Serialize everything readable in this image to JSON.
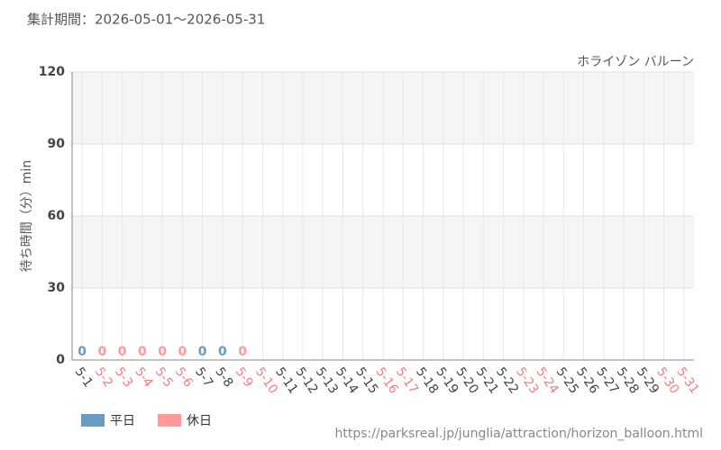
{
  "chart_data": {
    "type": "bar",
    "subtitle": "集計期間：2026-05-01～2026-05-31",
    "title": "ホライゾン バルーン",
    "y_label": "待ち時間（分）min",
    "source": "https://parksreal.jp/junglia/attraction/horizon_balloon.html",
    "categories": [
      "5-1",
      "5-2",
      "5-3",
      "5-4",
      "5-5",
      "5-6",
      "5-7",
      "5-8",
      "5-9",
      "5-10",
      "5-11",
      "5-12",
      "5-13",
      "5-14",
      "5-15",
      "5-16",
      "5-17",
      "5-18",
      "5-19",
      "5-20",
      "5-21",
      "5-22",
      "5-23",
      "5-24",
      "5-25",
      "5-26",
      "5-27",
      "5-28",
      "5-29",
      "5-30",
      "5-31"
    ],
    "category_colors": [
      "#444",
      "#f08080",
      "#f08080",
      "#f08080",
      "#f08080",
      "#f08080",
      "#444",
      "#444",
      "#f08080",
      "#f08080",
      "#444",
      "#444",
      "#444",
      "#444",
      "#444",
      "#f08080",
      "#f08080",
      "#444",
      "#444",
      "#444",
      "#444",
      "#444",
      "#f08080",
      "#f08080",
      "#444",
      "#444",
      "#444",
      "#444",
      "#444",
      "#f08080",
      "#f08080"
    ],
    "series": [
      {
        "name": "平日",
        "color": "#6a9bc3",
        "values": [
          0,
          null,
          null,
          null,
          null,
          null,
          0,
          0,
          null,
          null,
          null,
          null,
          null,
          null,
          null,
          null,
          null,
          null,
          null,
          null,
          null,
          null,
          null,
          null,
          null,
          null,
          null,
          null,
          null,
          null,
          null
        ]
      },
      {
        "name": "休日",
        "color": "#ff9999",
        "values": [
          null,
          0,
          0,
          0,
          0,
          0,
          null,
          null,
          0,
          null,
          null,
          null,
          null,
          null,
          null,
          null,
          null,
          null,
          null,
          null,
          null,
          null,
          null,
          null,
          null,
          null,
          null,
          null,
          null,
          null,
          null
        ]
      }
    ],
    "ylim": [
      0,
      120
    ],
    "yticks": [
      0,
      30,
      60,
      90,
      120
    ],
    "grid": true
  }
}
